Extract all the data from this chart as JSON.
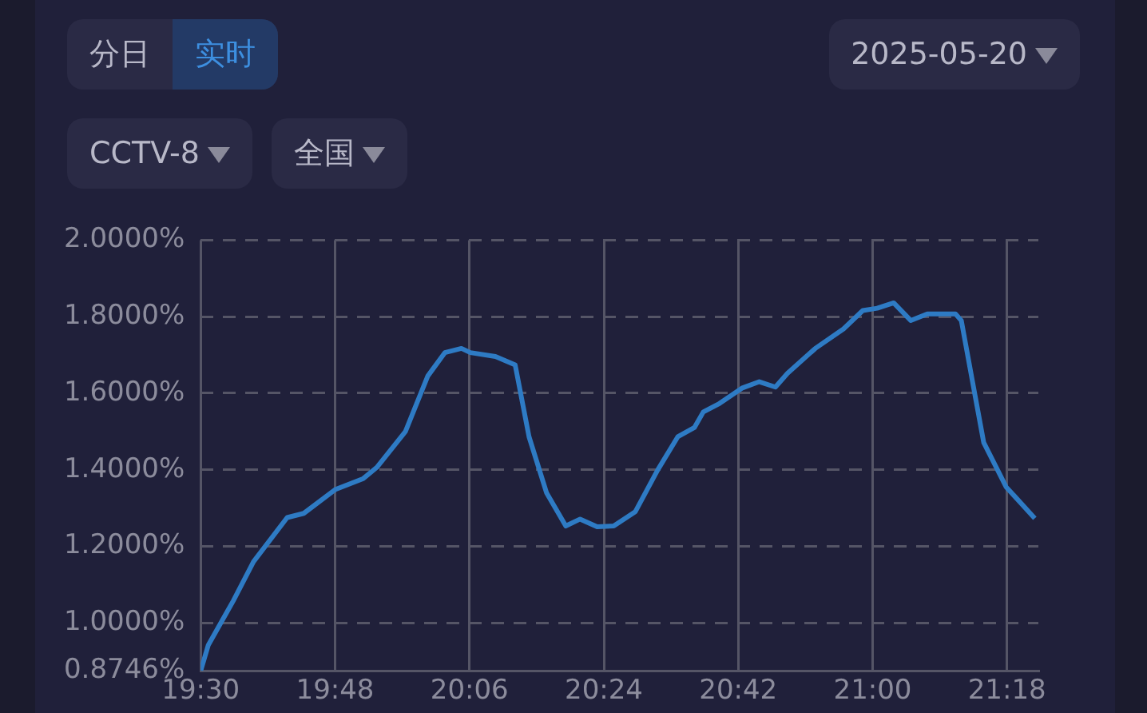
{
  "chart_data": {
    "type": "line",
    "annotations": [
      "分日",
      "实时",
      "2025-05-20",
      "CCTV-8",
      "全国"
    ],
    "x": [
      19.5,
      19.517,
      19.573,
      19.618,
      19.693,
      19.73,
      19.8,
      19.863,
      19.893,
      19.957,
      20.007,
      20.045,
      20.082,
      20.102,
      20.158,
      20.202,
      20.233,
      20.272,
      20.315,
      20.347,
      20.385,
      20.422,
      20.47,
      20.52,
      20.565,
      20.602,
      20.622,
      20.658,
      20.708,
      20.747,
      20.783,
      20.81,
      20.872,
      20.935,
      20.978,
      21.01,
      21.047,
      21.085,
      21.122,
      21.185,
      21.198,
      21.223,
      21.248,
      21.298,
      21.362
    ],
    "series": [
      {
        "color": "#2e7bc4",
        "values": [
          0.8746,
          0.942,
          1.058,
          1.16,
          1.275,
          1.286,
          1.348,
          1.377,
          1.406,
          1.5,
          1.645,
          1.706,
          1.717,
          1.706,
          1.696,
          1.674,
          1.486,
          1.34,
          1.253,
          1.271,
          1.251,
          1.253,
          1.29,
          1.399,
          1.486,
          1.51,
          1.551,
          1.573,
          1.613,
          1.63,
          1.616,
          1.652,
          1.717,
          1.768,
          1.816,
          1.822,
          1.836,
          1.79,
          1.807,
          1.807,
          1.79,
          1.63,
          1.471,
          1.355,
          1.273
        ]
      }
    ],
    "xlim": [
      19.5,
      21.37
    ],
    "xticks": [
      {
        "value": 19.5,
        "label": "19:30"
      },
      {
        "value": 19.8,
        "label": "19:48"
      },
      {
        "value": 20.1,
        "label": "20:06"
      },
      {
        "value": 20.4,
        "label": "20:24"
      },
      {
        "value": 20.7,
        "label": "20:42"
      },
      {
        "value": 21.0,
        "label": "21:00"
      },
      {
        "value": 21.3,
        "label": "21:18"
      }
    ],
    "ylim": [
      0.8746,
      2.0
    ],
    "yticks": [
      {
        "value": 0.8746,
        "label": "0.8746%"
      },
      {
        "value": 1.0,
        "label": "1.0000%"
      },
      {
        "value": 1.2,
        "label": "1.2000%"
      },
      {
        "value": 1.4,
        "label": "1.4000%"
      },
      {
        "value": 1.6,
        "label": "1.6000%"
      },
      {
        "value": 1.8,
        "label": "1.8000%"
      },
      {
        "value": 2.0,
        "label": "2.0000%"
      }
    ],
    "grid": true,
    "legend": false,
    "marker": "none",
    "line_style": "solid"
  }
}
